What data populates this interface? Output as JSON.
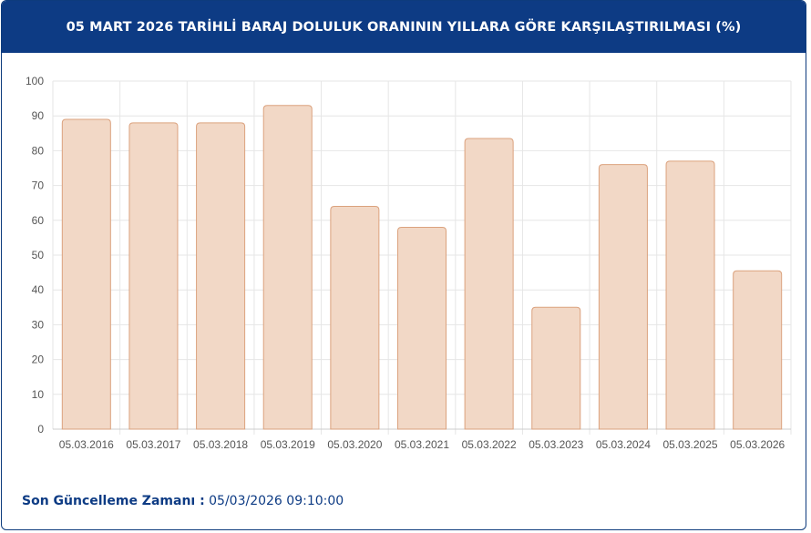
{
  "header": {
    "title": "05 MART 2026 TARİHLİ BARAJ DOLULUK ORANININ YILLARA GÖRE KARŞILAŞTIRILMASI (%)"
  },
  "chart_data": {
    "type": "bar",
    "categories": [
      "05.03.2016",
      "05.03.2017",
      "05.03.2018",
      "05.03.2019",
      "05.03.2020",
      "05.03.2021",
      "05.03.2022",
      "05.03.2023",
      "05.03.2024",
      "05.03.2025",
      "05.03.2026"
    ],
    "values": [
      89,
      88,
      88,
      93,
      64,
      58,
      83.5,
      35,
      76,
      77,
      45.5
    ],
    "ylim": [
      0,
      100
    ],
    "yticks": [
      0,
      10,
      20,
      30,
      40,
      50,
      60,
      70,
      80,
      90,
      100
    ],
    "grid": true,
    "colors": {
      "bar_fill": "#f2d8c6",
      "bar_stroke": "#dba27e",
      "grid": "#e6e6e6",
      "tick_text": "#555555"
    }
  },
  "footer": {
    "label": "Son Güncelleme Zamanı :",
    "value": "05/03/2026 09:10:00"
  }
}
